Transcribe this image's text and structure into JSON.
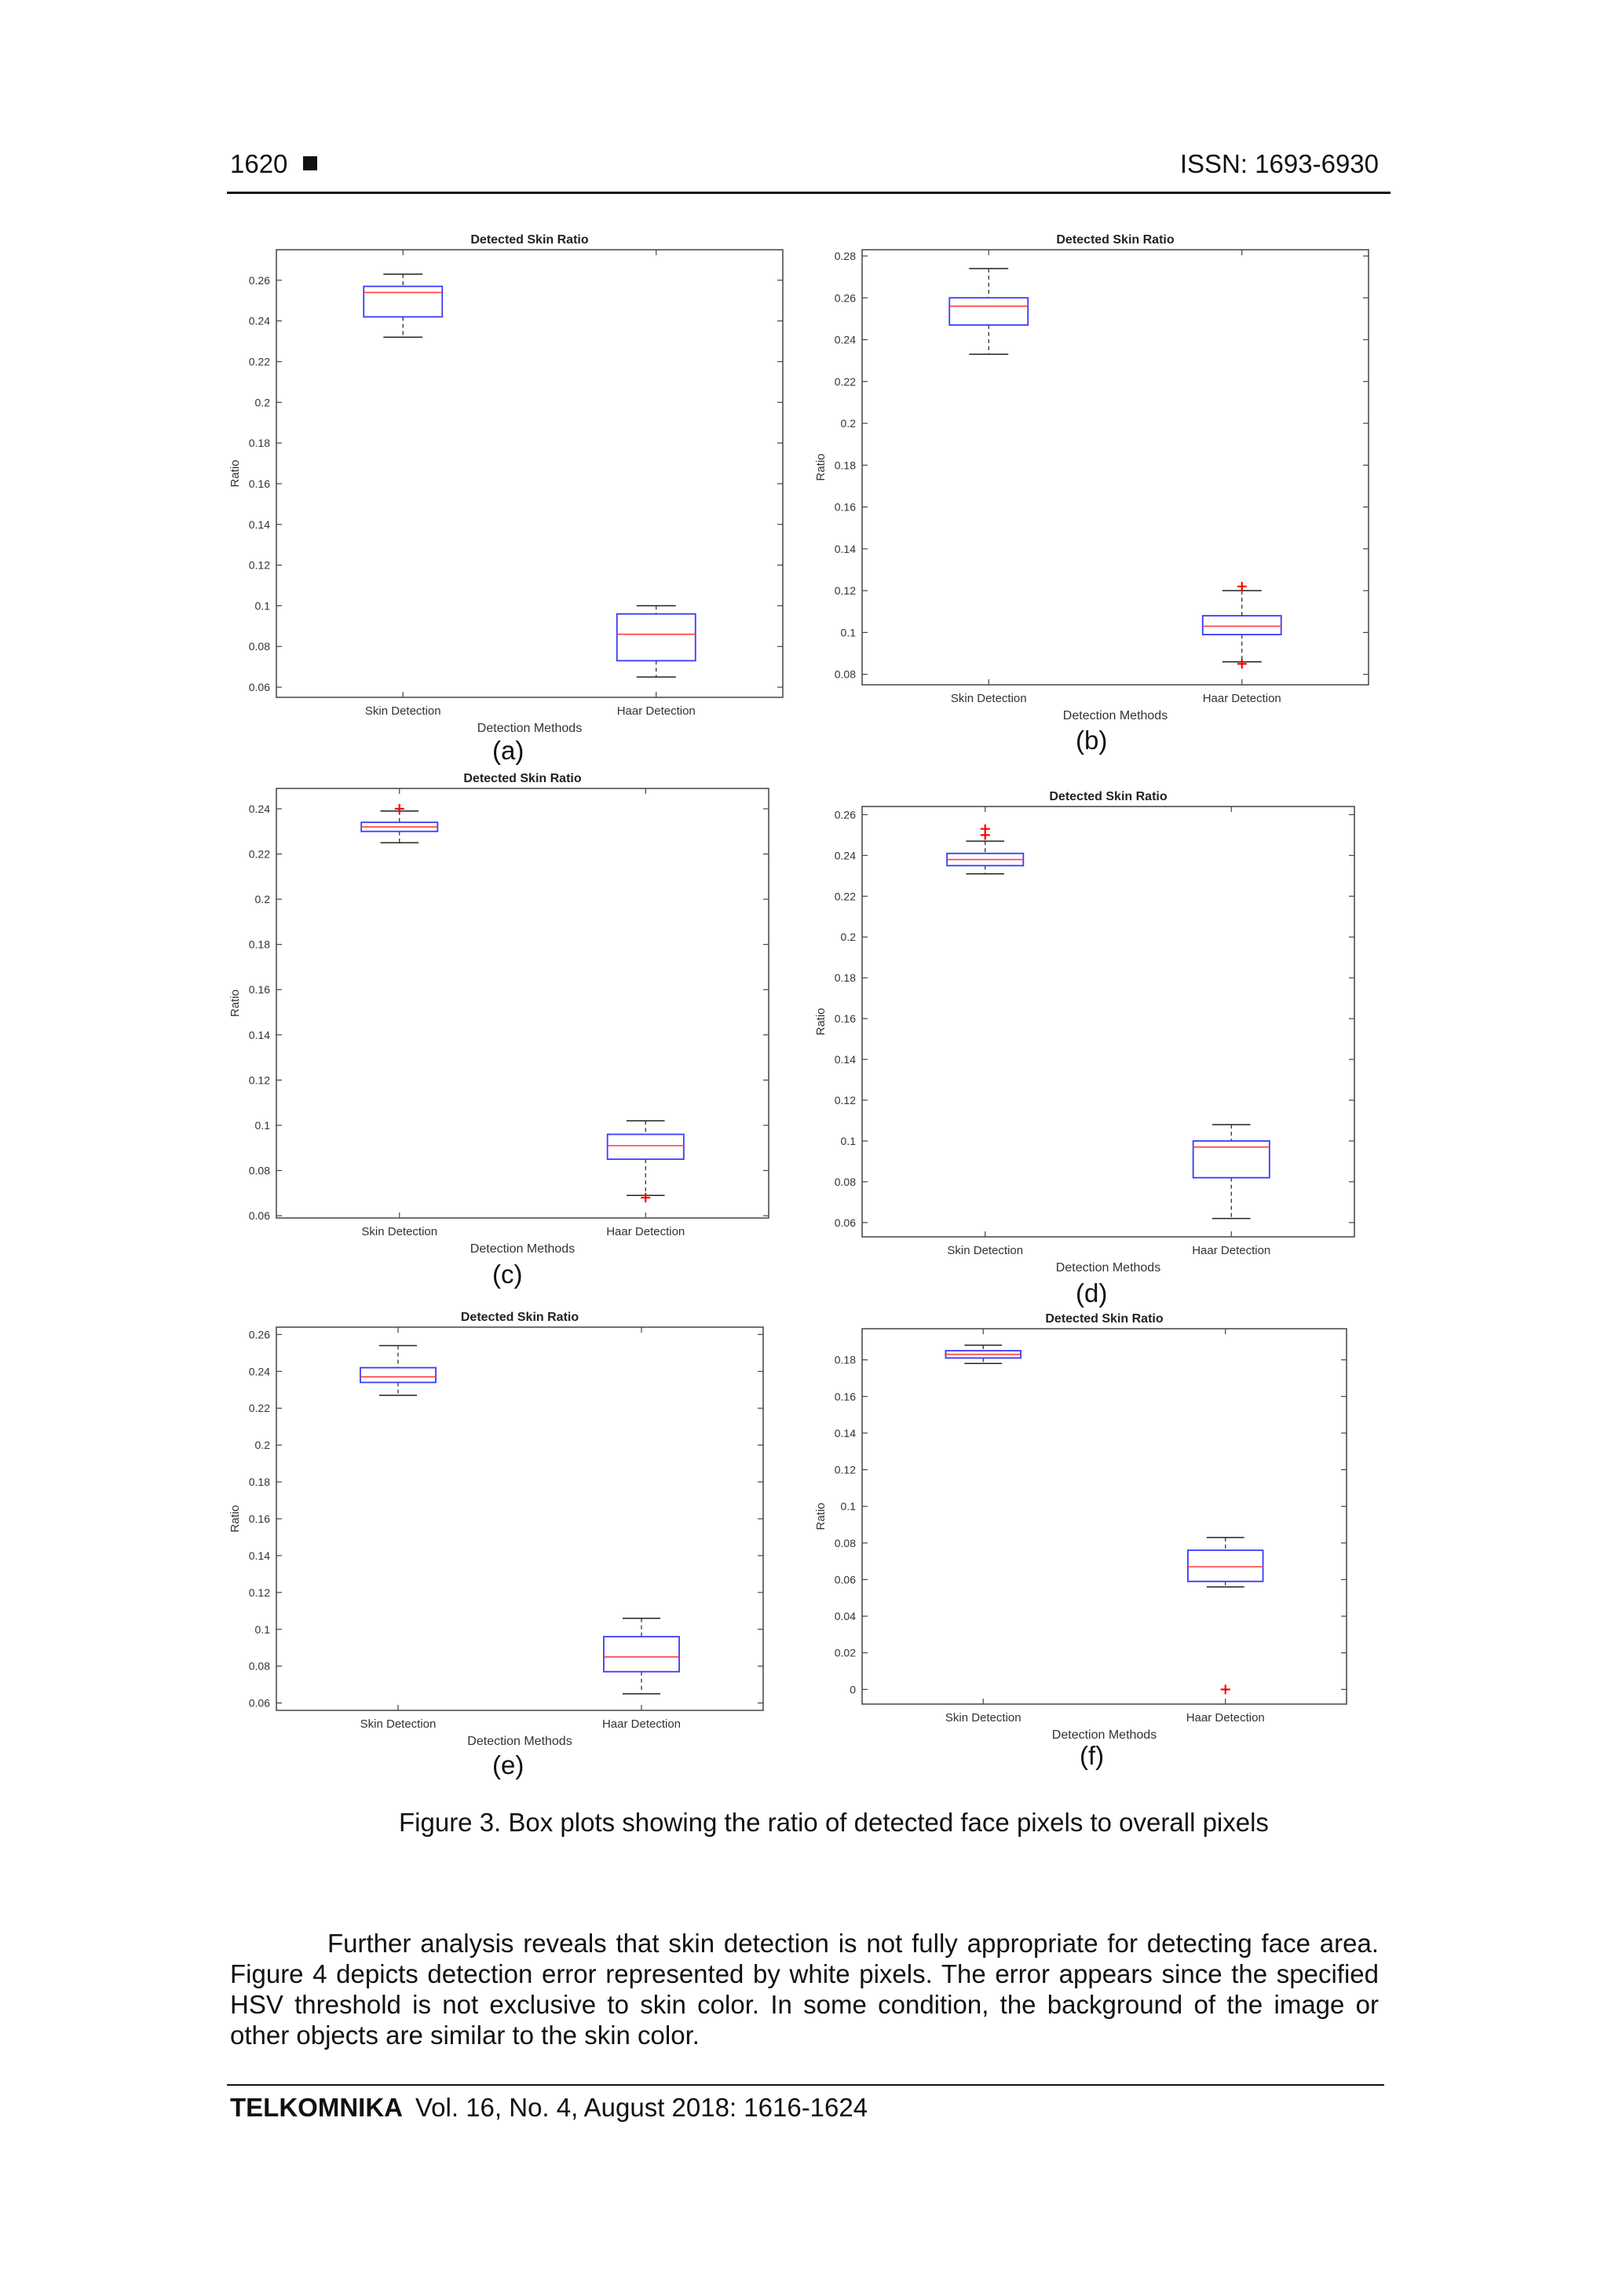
{
  "header": {
    "page_number": "1620",
    "issn": "ISSN: 1693-6930"
  },
  "figure": {
    "caption": "Figure 3. Box plots showing the ratio of detected face pixels to overall pixels"
  },
  "chart_data": [
    {
      "id": "a",
      "sublabel": "(a)",
      "type": "box",
      "title": "Detected Skin Ratio",
      "xlabel": "Detection Methods",
      "ylabel": "Ratio",
      "categories": [
        "Skin Detection",
        "Haar Detection"
      ],
      "ylim": [
        0.055,
        0.275
      ],
      "yticks": [
        "0.06",
        "0.08",
        "0.1",
        "0.12",
        "0.14",
        "0.16",
        "0.18",
        "0.2",
        "0.22",
        "0.24",
        "0.26"
      ],
      "boxes": [
        {
          "whisker_low": 0.232,
          "q1": 0.242,
          "median": 0.254,
          "q3": 0.257,
          "whisker_high": 0.263,
          "outliers": []
        },
        {
          "whisker_low": 0.065,
          "q1": 0.073,
          "median": 0.086,
          "q3": 0.096,
          "whisker_high": 0.1,
          "outliers": []
        }
      ]
    },
    {
      "id": "b",
      "sublabel": "(b)",
      "type": "box",
      "title": "Detected Skin Ratio",
      "xlabel": "Detection Methods",
      "ylabel": "Ratio",
      "categories": [
        "Skin Detection",
        "Haar Detection"
      ],
      "ylim": [
        0.075,
        0.283
      ],
      "yticks": [
        "0.08",
        "0.1",
        "0.12",
        "0.14",
        "0.16",
        "0.18",
        "0.2",
        "0.22",
        "0.24",
        "0.26",
        "0.28"
      ],
      "boxes": [
        {
          "whisker_low": 0.233,
          "q1": 0.247,
          "median": 0.256,
          "q3": 0.26,
          "whisker_high": 0.274,
          "outliers": []
        },
        {
          "whisker_low": 0.086,
          "q1": 0.099,
          "median": 0.103,
          "q3": 0.108,
          "whisker_high": 0.12,
          "outliers": [
            0.122,
            0.085
          ]
        }
      ]
    },
    {
      "id": "c",
      "sublabel": "(c)",
      "type": "box",
      "title": "Detected Skin Ratio",
      "xlabel": "Detection Methods",
      "ylabel": "Ratio",
      "categories": [
        "Skin Detection",
        "Haar Detection"
      ],
      "ylim": [
        0.059,
        0.249
      ],
      "yticks": [
        "0.06",
        "0.08",
        "0.1",
        "0.12",
        "0.14",
        "0.16",
        "0.18",
        "0.2",
        "0.22",
        "0.24"
      ],
      "boxes": [
        {
          "whisker_low": 0.225,
          "q1": 0.23,
          "median": 0.232,
          "q3": 0.234,
          "whisker_high": 0.239,
          "outliers": [
            0.24
          ]
        },
        {
          "whisker_low": 0.069,
          "q1": 0.085,
          "median": 0.091,
          "q3": 0.096,
          "whisker_high": 0.102,
          "outliers": [
            0.068
          ]
        }
      ]
    },
    {
      "id": "d",
      "sublabel": "(d)",
      "type": "box",
      "title": "Detected Skin Ratio",
      "xlabel": "Detection Methods",
      "ylabel": "Ratio",
      "categories": [
        "Skin Detection",
        "Haar Detection"
      ],
      "ylim": [
        0.053,
        0.264
      ],
      "yticks": [
        "0.06",
        "0.08",
        "0.1",
        "0.12",
        "0.14",
        "0.16",
        "0.18",
        "0.2",
        "0.22",
        "0.24",
        "0.26"
      ],
      "boxes": [
        {
          "whisker_low": 0.231,
          "q1": 0.235,
          "median": 0.238,
          "q3": 0.241,
          "whisker_high": 0.247,
          "outliers": [
            0.25,
            0.253
          ]
        },
        {
          "whisker_low": 0.062,
          "q1": 0.082,
          "median": 0.097,
          "q3": 0.1,
          "whisker_high": 0.108,
          "outliers": []
        }
      ]
    },
    {
      "id": "e",
      "sublabel": "(e)",
      "type": "box",
      "title": "Detected Skin Ratio",
      "xlabel": "Detection Methods",
      "ylabel": "Ratio",
      "categories": [
        "Skin Detection",
        "Haar Detection"
      ],
      "ylim": [
        0.056,
        0.264
      ],
      "yticks": [
        "0.06",
        "0.08",
        "0.1",
        "0.12",
        "0.14",
        "0.16",
        "0.18",
        "0.2",
        "0.22",
        "0.24",
        "0.26"
      ],
      "boxes": [
        {
          "whisker_low": 0.227,
          "q1": 0.234,
          "median": 0.237,
          "q3": 0.242,
          "whisker_high": 0.254,
          "outliers": []
        },
        {
          "whisker_low": 0.065,
          "q1": 0.077,
          "median": 0.085,
          "q3": 0.096,
          "whisker_high": 0.106,
          "outliers": []
        }
      ]
    },
    {
      "id": "f",
      "sublabel": "(f)",
      "type": "box",
      "title": "Detected Skin Ratio",
      "xlabel": "Detection Methods",
      "ylabel": "Ratio",
      "categories": [
        "Skin Detection",
        "Haar Detection"
      ],
      "ylim": [
        -0.008,
        0.197
      ],
      "yticks": [
        "0",
        "0.02",
        "0.04",
        "0.06",
        "0.08",
        "0.1",
        "0.12",
        "0.14",
        "0.16",
        "0.18"
      ],
      "boxes": [
        {
          "whisker_low": 0.178,
          "q1": 0.181,
          "median": 0.183,
          "q3": 0.185,
          "whisker_high": 0.188,
          "outliers": []
        },
        {
          "whisker_low": 0.056,
          "q1": 0.059,
          "median": 0.067,
          "q3": 0.076,
          "whisker_high": 0.083,
          "outliers": [
            0.0
          ]
        }
      ]
    }
  ],
  "body": {
    "paragraph": "Further analysis reveals that skin detection is not fully appropriate for detecting face area. Figure 4 depicts detection error represented by white pixels. The error appears since the specified HSV threshold is not exclusive to skin color. In some condition, the background of the image or other objects are similar to the skin color."
  },
  "footer": {
    "journal": "TELKOMNIKA",
    "citation": "Vol. 16, No. 4, August 2018: 1616-1624"
  },
  "colors": {
    "box": "#3a3aff",
    "median": "#ff3b3b",
    "outlier": "#ff0000",
    "axis": "#444444",
    "whisker": "#222222"
  }
}
